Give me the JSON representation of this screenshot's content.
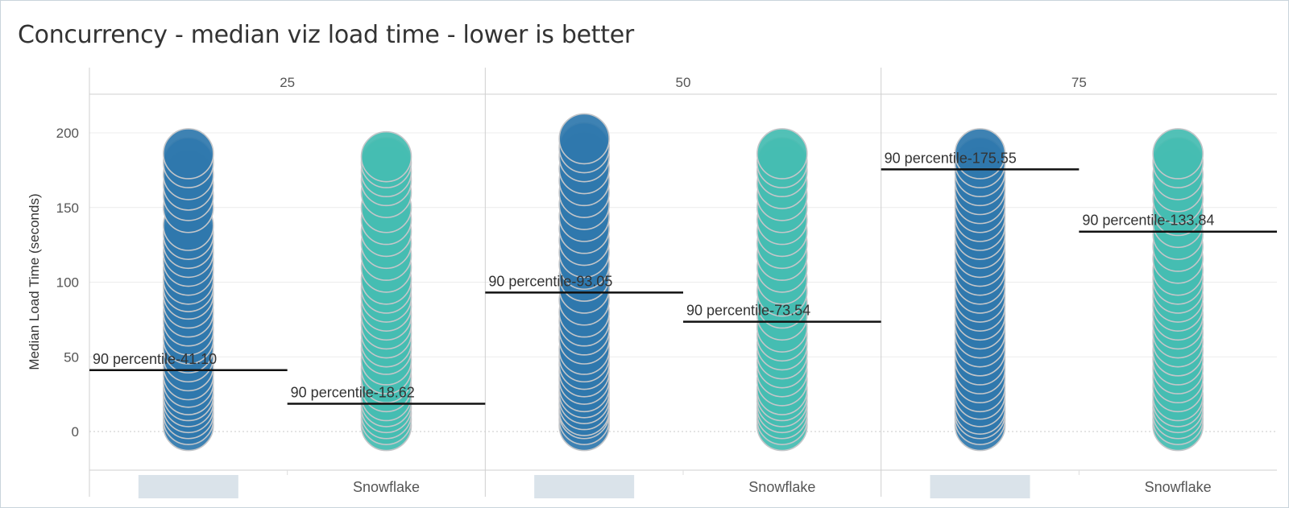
{
  "title": "Concurrency - median viz load time - lower is better",
  "chart_data": {
    "type": "scatter",
    "title": "Concurrency - median viz load time - lower is better",
    "ylabel": "Median Load Time (seconds)",
    "ylim": [
      -26,
      226
    ],
    "y_ticks": [
      0,
      50,
      100,
      150,
      200
    ],
    "grid": true,
    "colors": {
      "Series 1": "#2f78ad",
      "Snowflake": "#45bcb1",
      "mark_outline": "#c4c6c9",
      "reference_line": "#111111"
    },
    "panels": [
      {
        "label": "25",
        "categories": [
          {
            "name": "",
            "points": [
              4,
              8,
              12,
              16,
              20,
              24,
              28,
              33,
              38,
              44,
              50,
              56,
              62,
              68,
              74,
              80,
              86,
              92,
              97,
              102,
              108,
              114,
              120,
              126,
              132,
              138,
              150,
              158,
              165,
              172,
              180,
              186
            ],
            "reference": {
              "label": "90 percentile-41.10",
              "value": 41.1
            }
          },
          {
            "name": "Snowflake",
            "points": [
              4,
              8,
              12,
              16,
              20,
              24,
              30,
              36,
              42,
              48,
              55,
              60,
              66,
              72,
              78,
              84,
              90,
              96,
              102,
              110,
              118,
              126,
              134,
              142,
              150,
              160,
              168,
              174,
              180,
              184
            ],
            "reference": {
              "label": "90 percentile-18.62",
              "value": 18.62
            }
          }
        ]
      },
      {
        "label": "50",
        "categories": [
          {
            "name": "",
            "points": [
              4,
              8,
              12,
              14,
              18,
              22,
              26,
              30,
              35,
              40,
              45,
              50,
              55,
              62,
              68,
              74,
              80,
              88,
              96,
              104,
              112,
              120,
              128,
              136,
              144,
              152,
              160,
              168,
              176,
              184,
              190,
              196
            ],
            "reference": {
              "label": "90 percentile-93.05",
              "value": 93.05
            }
          },
          {
            "name": "Snowflake",
            "points": [
              4,
              8,
              12,
              16,
              20,
              24,
              28,
              34,
              40,
              46,
              52,
              58,
              64,
              70,
              78,
              86,
              94,
              102,
              110,
              118,
              126,
              134,
              142,
              150,
              158,
              166,
              174,
              180,
              186
            ],
            "reference": {
              "label": "90 percentile-73.54",
              "value": 73.54
            }
          }
        ]
      },
      {
        "label": "75",
        "categories": [
          {
            "name": "",
            "points": [
              4,
              8,
              12,
              15,
              20,
              25,
              30,
              36,
              42,
              48,
              54,
              60,
              66,
              72,
              78,
              84,
              90,
              96,
              102,
              108,
              114,
              120,
              126,
              132,
              138,
              144,
              150,
              156,
              162,
              168,
              174,
              180,
              186
            ],
            "reference": {
              "label": "90 percentile-175.55",
              "value": 175.55
            }
          },
          {
            "name": "Snowflake",
            "points": [
              4,
              8,
              12,
              16,
              20,
              24,
              30,
              36,
              42,
              48,
              54,
              60,
              66,
              72,
              78,
              84,
              90,
              96,
              102,
              108,
              116,
              124,
              132,
              140,
              148,
              156,
              164,
              172,
              180,
              186
            ],
            "reference": {
              "label": "90 percentile-133.84",
              "value": 133.84
            }
          }
        ]
      }
    ]
  }
}
